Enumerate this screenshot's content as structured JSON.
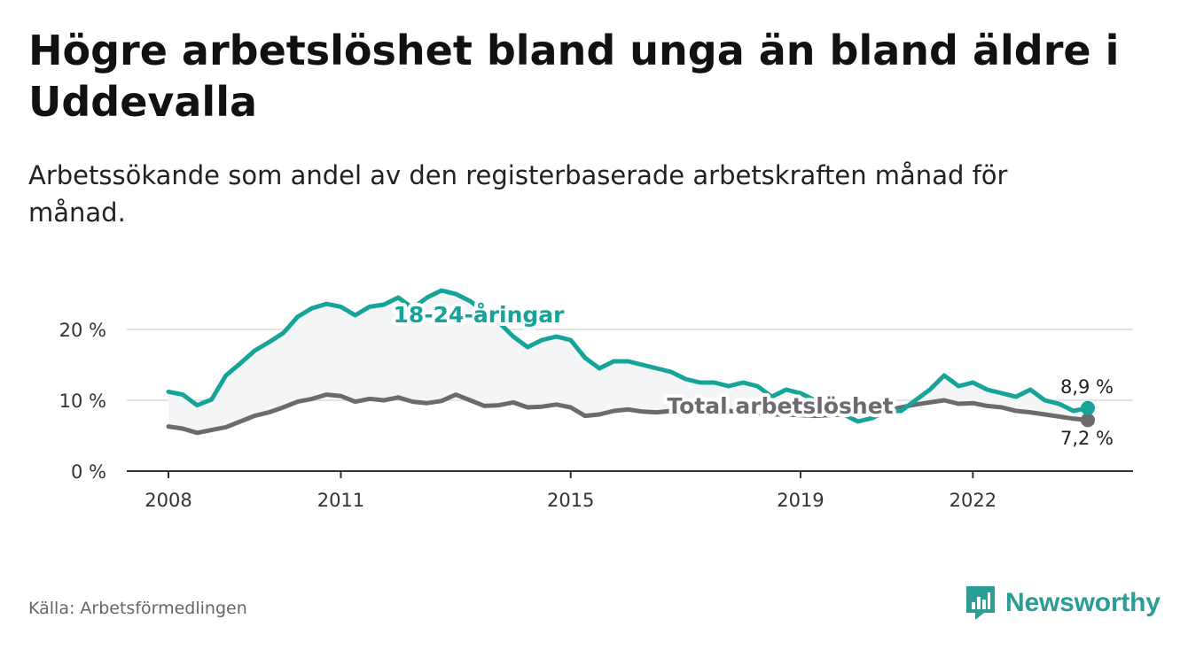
{
  "title": "Högre arbetslöshet bland unga än bland äldre i Uddevalla",
  "subtitle": "Arbetssökande som andel av den registerbaserade arbetskraften månad för månad.",
  "source": "Källa: Arbetsförmedlingen",
  "brand": {
    "name": "Newsworthy",
    "icon": "newsworthy-logo-icon",
    "color": "#2a9d96"
  },
  "chart_data": {
    "type": "line",
    "x_ticks": [
      "2008",
      "2011",
      "2015",
      "2019",
      "2022"
    ],
    "y_ticks": [
      "0 %",
      "10 %",
      "20 %"
    ],
    "ylim": [
      0,
      26
    ],
    "grid": true,
    "series": [
      {
        "name": "18-24-åringar",
        "color": "#16a39a",
        "end_label": "8,9 %",
        "values": [
          [
            2008.0,
            11.2
          ],
          [
            2008.25,
            10.8
          ],
          [
            2008.5,
            9.3
          ],
          [
            2008.75,
            10.1
          ],
          [
            2009.0,
            13.5
          ],
          [
            2009.25,
            15.2
          ],
          [
            2009.5,
            17.0
          ],
          [
            2009.75,
            18.2
          ],
          [
            2010.0,
            19.5
          ],
          [
            2010.25,
            21.8
          ],
          [
            2010.5,
            23.0
          ],
          [
            2010.75,
            23.6
          ],
          [
            2011.0,
            23.2
          ],
          [
            2011.25,
            22.0
          ],
          [
            2011.5,
            23.2
          ],
          [
            2011.75,
            23.5
          ],
          [
            2012.0,
            24.5
          ],
          [
            2012.25,
            23.0
          ],
          [
            2012.5,
            24.5
          ],
          [
            2012.75,
            25.5
          ],
          [
            2013.0,
            25.0
          ],
          [
            2013.25,
            24.0
          ],
          [
            2013.5,
            22.5
          ],
          [
            2013.75,
            21.0
          ],
          [
            2014.0,
            19.0
          ],
          [
            2014.25,
            17.5
          ],
          [
            2014.5,
            18.5
          ],
          [
            2014.75,
            19.0
          ],
          [
            2015.0,
            18.5
          ],
          [
            2015.25,
            16.0
          ],
          [
            2015.5,
            14.5
          ],
          [
            2015.75,
            15.5
          ],
          [
            2016.0,
            15.5
          ],
          [
            2016.25,
            15.0
          ],
          [
            2016.5,
            14.5
          ],
          [
            2016.75,
            14.0
          ],
          [
            2017.0,
            13.0
          ],
          [
            2017.25,
            12.5
          ],
          [
            2017.5,
            12.5
          ],
          [
            2017.75,
            12.0
          ],
          [
            2018.0,
            12.5
          ],
          [
            2018.25,
            12.0
          ],
          [
            2018.5,
            10.5
          ],
          [
            2018.75,
            11.5
          ],
          [
            2019.0,
            11.0
          ],
          [
            2019.25,
            10.0
          ],
          [
            2019.5,
            9.0
          ],
          [
            2019.75,
            8.0
          ],
          [
            2020.0,
            7.0
          ],
          [
            2020.25,
            7.5
          ],
          [
            2020.5,
            8.5
          ],
          [
            2020.75,
            8.5
          ],
          [
            2021.0,
            10.0
          ],
          [
            2021.25,
            11.5
          ],
          [
            2021.5,
            13.5
          ],
          [
            2021.75,
            12.0
          ],
          [
            2022.0,
            12.5
          ],
          [
            2022.25,
            11.5
          ],
          [
            2022.5,
            11.0
          ],
          [
            2022.75,
            10.5
          ],
          [
            2023.0,
            11.5
          ],
          [
            2023.25,
            10.0
          ],
          [
            2023.5,
            9.5
          ],
          [
            2023.75,
            8.5
          ],
          [
            2024.0,
            8.9
          ]
        ]
      },
      {
        "name": "Total arbetslöshet",
        "color": "#6b6b6e",
        "end_label": "7,2 %",
        "values": [
          [
            2008.0,
            6.3
          ],
          [
            2008.25,
            6.0
          ],
          [
            2008.5,
            5.4
          ],
          [
            2008.75,
            5.8
          ],
          [
            2009.0,
            6.2
          ],
          [
            2009.25,
            7.0
          ],
          [
            2009.5,
            7.8
          ],
          [
            2009.75,
            8.3
          ],
          [
            2010.0,
            9.0
          ],
          [
            2010.25,
            9.8
          ],
          [
            2010.5,
            10.2
          ],
          [
            2010.75,
            10.8
          ],
          [
            2011.0,
            10.6
          ],
          [
            2011.25,
            9.8
          ],
          [
            2011.5,
            10.2
          ],
          [
            2011.75,
            10.0
          ],
          [
            2012.0,
            10.4
          ],
          [
            2012.25,
            9.8
          ],
          [
            2012.5,
            9.6
          ],
          [
            2012.75,
            9.9
          ],
          [
            2013.0,
            10.8
          ],
          [
            2013.25,
            10.0
          ],
          [
            2013.5,
            9.2
          ],
          [
            2013.75,
            9.3
          ],
          [
            2014.0,
            9.7
          ],
          [
            2014.25,
            9.0
          ],
          [
            2014.5,
            9.1
          ],
          [
            2014.75,
            9.4
          ],
          [
            2015.0,
            9.0
          ],
          [
            2015.25,
            7.8
          ],
          [
            2015.5,
            8.0
          ],
          [
            2015.75,
            8.5
          ],
          [
            2016.0,
            8.7
          ],
          [
            2016.25,
            8.4
          ],
          [
            2016.5,
            8.3
          ],
          [
            2016.75,
            8.5
          ],
          [
            2017.0,
            8.6
          ],
          [
            2017.25,
            8.8
          ],
          [
            2017.5,
            8.7
          ],
          [
            2017.75,
            8.5
          ],
          [
            2018.0,
            8.3
          ],
          [
            2018.25,
            8.2
          ],
          [
            2018.5,
            8.0
          ],
          [
            2018.75,
            8.0
          ],
          [
            2019.0,
            7.9
          ],
          [
            2019.25,
            7.8
          ],
          [
            2019.5,
            7.9
          ],
          [
            2019.75,
            8.0
          ],
          [
            2020.0,
            8.1
          ],
          [
            2020.25,
            8.3
          ],
          [
            2020.5,
            8.6
          ],
          [
            2020.75,
            9.0
          ],
          [
            2021.0,
            9.4
          ],
          [
            2021.25,
            9.7
          ],
          [
            2021.5,
            10.0
          ],
          [
            2021.75,
            9.5
          ],
          [
            2022.0,
            9.6
          ],
          [
            2022.25,
            9.2
          ],
          [
            2022.5,
            9.0
          ],
          [
            2022.75,
            8.5
          ],
          [
            2023.0,
            8.3
          ],
          [
            2023.25,
            8.0
          ],
          [
            2023.5,
            7.7
          ],
          [
            2023.75,
            7.4
          ],
          [
            2024.0,
            7.2
          ]
        ]
      }
    ]
  }
}
